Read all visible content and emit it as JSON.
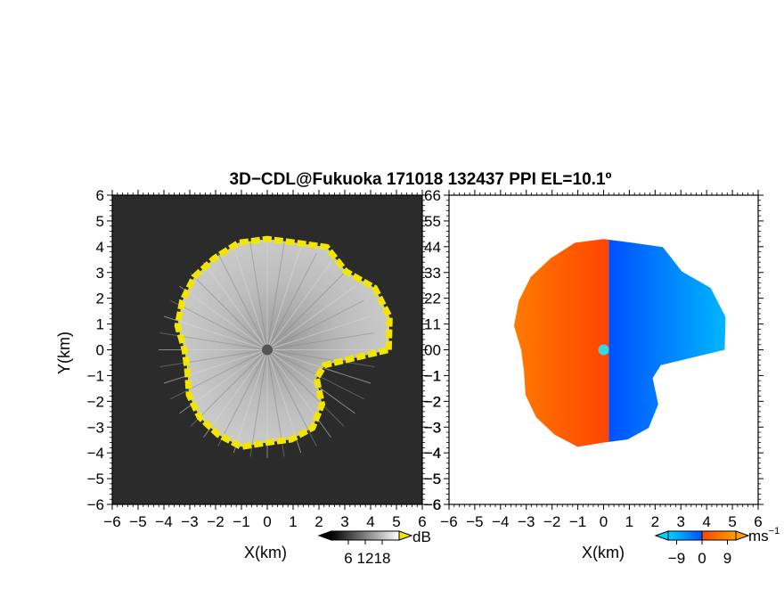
{
  "figure": {
    "title": "3D−CDL@Fukuoka 171018 132437 PPI EL=10.1º"
  },
  "chart_data": [
    {
      "type": "heatmap",
      "panel": "left",
      "xlabel": "X(km)",
      "ylabel": "Y(km)",
      "xlim": [
        -6,
        6
      ],
      "ylim": [
        -6,
        6
      ],
      "xticks": [
        "−6",
        "−5",
        "−4",
        "−3",
        "−2",
        "−1",
        "0",
        "1",
        "2",
        "3",
        "4",
        "5",
        "6"
      ],
      "yticks": [
        "−6",
        "−5",
        "−4",
        "−3",
        "−2",
        "−1",
        "0",
        "1",
        "2",
        "3",
        "4",
        "5",
        "6"
      ],
      "background_color": "#2b2b2b",
      "echo_colormap": [
        "#000000",
        "#ffffff"
      ],
      "edge_color": "#f2e600",
      "echo_boundary": {
        "angle_deg": [
          0,
          15,
          30,
          45,
          60,
          75,
          90,
          105,
          120,
          135,
          150,
          165,
          180,
          195,
          210,
          225,
          240,
          255,
          270,
          285,
          300,
          315,
          330,
          345
        ],
        "radius_km": [
          4.7,
          4.9,
          4.8,
          4.3,
          4.6,
          4.3,
          4.3,
          4.3,
          4.1,
          4.0,
          3.8,
          3.6,
          3.2,
          3.2,
          3.5,
          3.7,
          3.8,
          3.9,
          3.6,
          3.6,
          3.5,
          3.0,
          2.2,
          2.3
        ]
      },
      "colorbar": {
        "unit": "dB",
        "ticks": [
          "6",
          "12",
          "18"
        ],
        "range": [
          0,
          24
        ]
      }
    },
    {
      "type": "heatmap",
      "panel": "right",
      "xlabel": "X(km)",
      "ylabel": "",
      "xlim": [
        -6,
        6
      ],
      "ylim": [
        -6,
        6
      ],
      "xticks": [
        "−6",
        "−5",
        "−4",
        "−3",
        "−2",
        "−1",
        "0",
        "1",
        "2",
        "3",
        "4",
        "5",
        "6"
      ],
      "yticks": [
        "−6",
        "−5",
        "−4",
        "−3",
        "−2",
        "−1",
        "0",
        "1",
        "2",
        "3",
        "4",
        "5",
        "6"
      ],
      "echo_boundary": {
        "angle_deg": [
          0,
          15,
          30,
          45,
          60,
          75,
          90,
          105,
          120,
          135,
          150,
          165,
          180,
          195,
          210,
          225,
          240,
          255,
          270,
          285,
          300,
          315,
          330,
          345
        ],
        "radius_km": [
          4.7,
          4.9,
          4.8,
          4.3,
          4.6,
          4.3,
          4.3,
          4.3,
          4.1,
          4.0,
          3.8,
          3.6,
          3.2,
          3.2,
          3.5,
          3.7,
          3.8,
          3.9,
          3.6,
          3.6,
          3.5,
          3.0,
          2.2,
          2.3
        ]
      },
      "velocity_split_km": 0.2,
      "colormap": {
        "negative": [
          "#0050ff",
          "#00d2ff"
        ],
        "positive": [
          "#ff4400",
          "#ffa000"
        ]
      },
      "center_marker_color": "#38d8e0",
      "colorbar": {
        "unit": "ms",
        "unit_superscript": "−1",
        "ticks": [
          "−9",
          "0",
          "9"
        ],
        "range": [
          -12,
          12
        ]
      }
    }
  ]
}
